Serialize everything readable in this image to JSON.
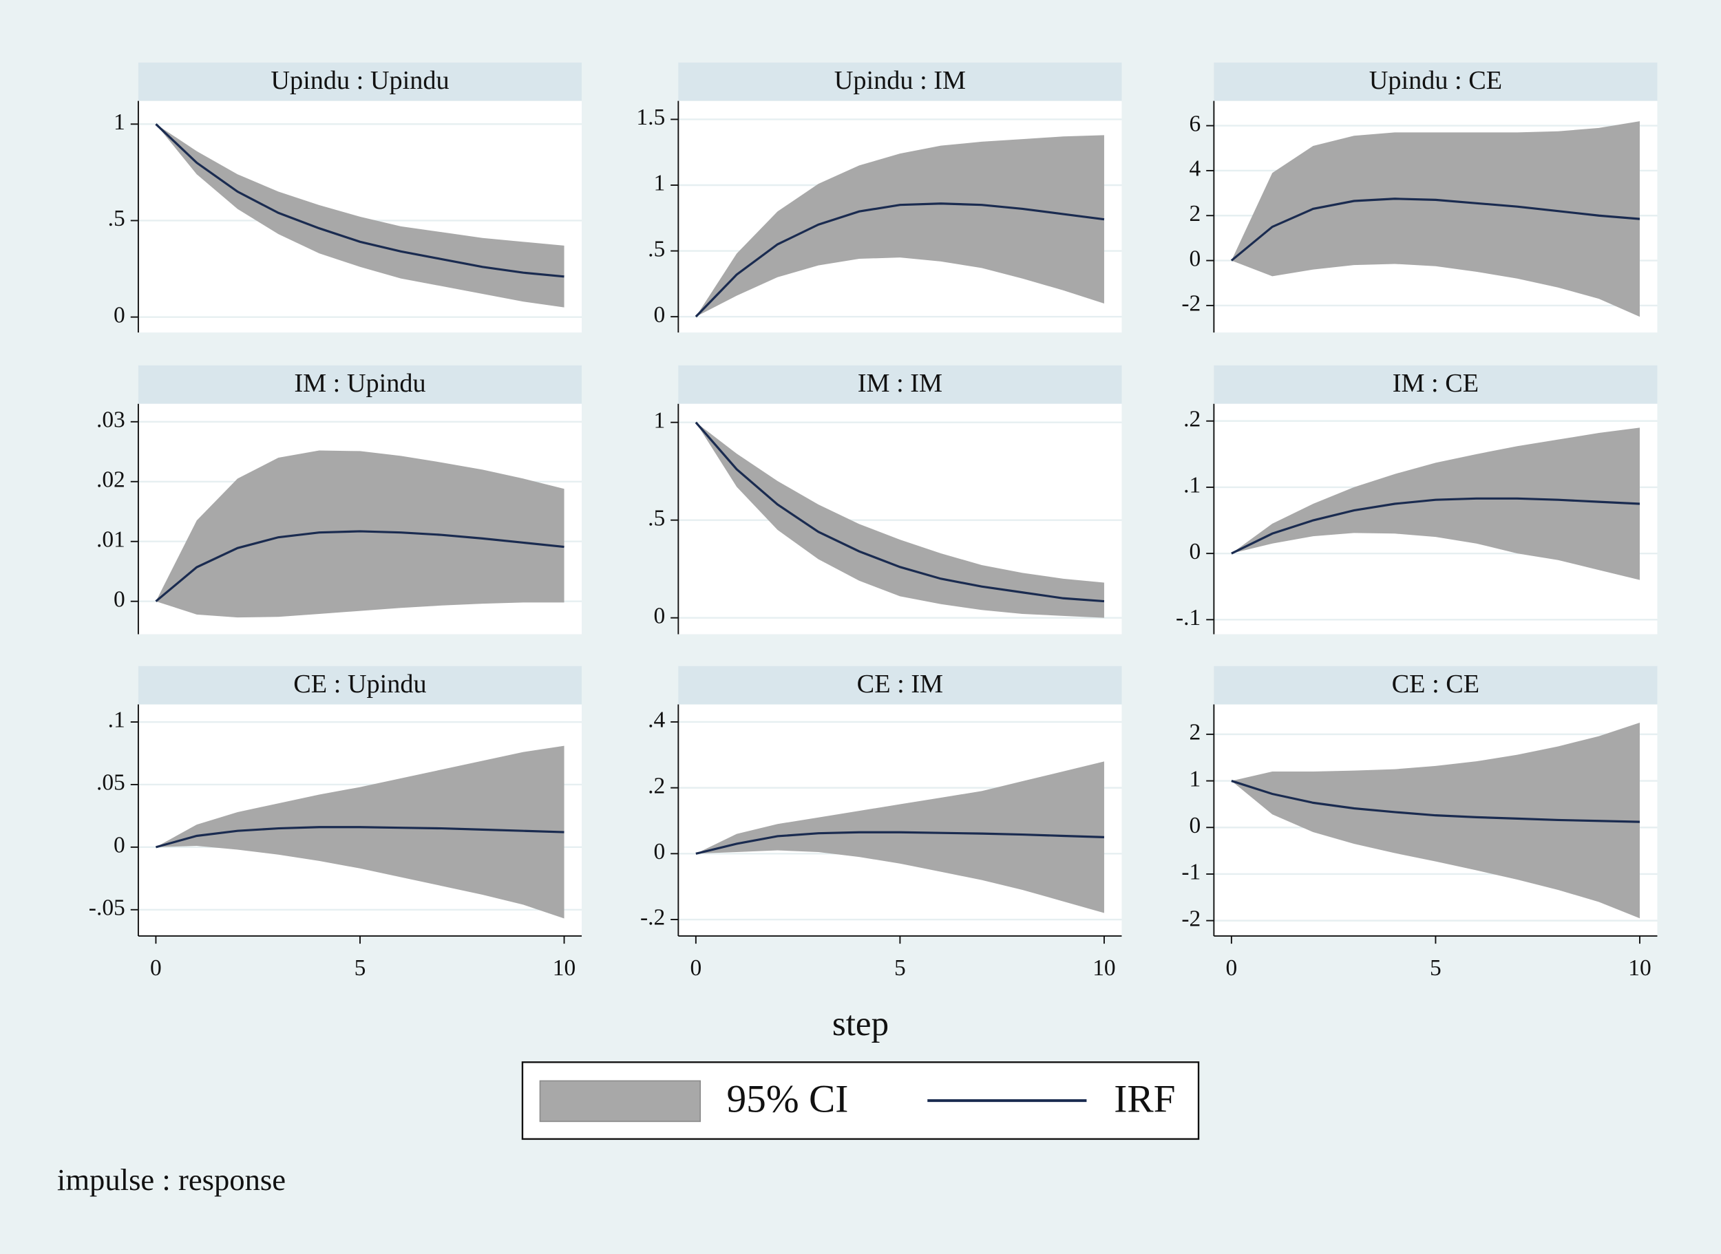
{
  "chart_data": [
    {
      "type": "band-line",
      "title": "Upindu : Upindu",
      "x": [
        0,
        1,
        2,
        3,
        4,
        5,
        6,
        7,
        8,
        9,
        10
      ],
      "values": [
        1,
        0.8,
        0.65,
        0.54,
        0.46,
        0.39,
        0.34,
        0.3,
        0.26,
        0.23,
        0.21
      ],
      "lower": [
        1,
        0.74,
        0.56,
        0.43,
        0.33,
        0.26,
        0.2,
        0.16,
        0.12,
        0.08,
        0.05
      ],
      "upper": [
        1,
        0.86,
        0.74,
        0.65,
        0.58,
        0.52,
        0.47,
        0.44,
        0.41,
        0.39,
        0.37
      ],
      "xlim": [
        -0.43,
        10.43
      ],
      "ylim": [
        -0.08,
        1.12
      ],
      "yticks": [
        0,
        {
          "value": 0.5,
          "label": ".5"
        },
        1
      ],
      "grid": true
    },
    {
      "type": "band-line",
      "title": "Upindu : IM",
      "x": [
        0,
        1,
        2,
        3,
        4,
        5,
        6,
        7,
        8,
        9,
        10
      ],
      "values": [
        0,
        0.32,
        0.55,
        0.7,
        0.8,
        0.85,
        0.86,
        0.85,
        0.82,
        0.78,
        0.74
      ],
      "lower": [
        0,
        0.16,
        0.3,
        0.39,
        0.44,
        0.45,
        0.42,
        0.37,
        0.29,
        0.2,
        0.1
      ],
      "upper": [
        0,
        0.48,
        0.8,
        1.01,
        1.15,
        1.24,
        1.3,
        1.33,
        1.35,
        1.37,
        1.38
      ],
      "xlim": [
        -0.43,
        10.43
      ],
      "ylim": [
        -0.12,
        1.64
      ],
      "yticks": [
        0,
        {
          "value": 0.5,
          "label": ".5"
        },
        1,
        1.5
      ],
      "grid": true
    },
    {
      "type": "band-line",
      "title": "Upindu : CE",
      "x": [
        0,
        1,
        2,
        3,
        4,
        5,
        6,
        7,
        8,
        9,
        10
      ],
      "values": [
        0,
        1.5,
        2.3,
        2.65,
        2.75,
        2.7,
        2.55,
        2.4,
        2.2,
        2,
        1.85
      ],
      "lower": [
        0,
        -0.7,
        -0.4,
        -0.2,
        -0.15,
        -0.25,
        -0.5,
        -0.8,
        -1.2,
        -1.7,
        -2.5
      ],
      "upper": [
        0,
        3.9,
        5.1,
        5.55,
        5.7,
        5.7,
        5.7,
        5.7,
        5.75,
        5.9,
        6.2
      ],
      "xlim": [
        -0.43,
        10.43
      ],
      "ylim": [
        -3.2,
        7.1
      ],
      "yticks": [
        -2,
        0,
        2,
        4,
        6
      ],
      "grid": true
    },
    {
      "type": "band-line",
      "title": "IM : Upindu",
      "x": [
        0,
        1,
        2,
        3,
        4,
        5,
        6,
        7,
        8,
        9,
        10
      ],
      "values": [
        0,
        0.0057,
        0.0089,
        0.0107,
        0.0115,
        0.0117,
        0.0115,
        0.0111,
        0.0105,
        0.0098,
        0.0091
      ],
      "lower": [
        0,
        -0.0022,
        -0.0027,
        -0.0026,
        -0.0021,
        -0.0016,
        -0.0011,
        -0.0007,
        -0.0004,
        -0.0002,
        -0.0002
      ],
      "upper": [
        0,
        0.0135,
        0.0205,
        0.024,
        0.0252,
        0.0251,
        0.0243,
        0.0232,
        0.022,
        0.0205,
        0.0188
      ],
      "xlim": [
        -0.43,
        10.43
      ],
      "ylim": [
        -0.0055,
        0.033
      ],
      "yticks": [
        0,
        {
          "value": 0.01,
          "label": ".01"
        },
        {
          "value": 0.02,
          "label": ".02"
        },
        {
          "value": 0.03,
          "label": ".03"
        }
      ],
      "grid": true
    },
    {
      "type": "band-line",
      "title": "IM : IM",
      "x": [
        0,
        1,
        2,
        3,
        4,
        5,
        6,
        7,
        8,
        9,
        10
      ],
      "values": [
        1,
        0.76,
        0.58,
        0.44,
        0.34,
        0.26,
        0.2,
        0.16,
        0.13,
        0.1,
        0.085
      ],
      "lower": [
        1,
        0.67,
        0.45,
        0.3,
        0.19,
        0.11,
        0.07,
        0.04,
        0.02,
        0.01,
        0
      ],
      "upper": [
        1,
        0.84,
        0.7,
        0.58,
        0.48,
        0.4,
        0.33,
        0.27,
        0.23,
        0.2,
        0.18
      ],
      "xlim": [
        -0.43,
        10.43
      ],
      "ylim": [
        -0.084,
        1.095
      ],
      "yticks": [
        0,
        {
          "value": 0.5,
          "label": ".5"
        },
        1
      ],
      "grid": true
    },
    {
      "type": "band-line",
      "title": "IM : CE",
      "x": [
        0,
        1,
        2,
        3,
        4,
        5,
        6,
        7,
        8,
        9,
        10
      ],
      "values": [
        0,
        0.03,
        0.05,
        0.065,
        0.075,
        0.081,
        0.083,
        0.083,
        0.081,
        0.078,
        0.075
      ],
      "lower": [
        0,
        0.015,
        0.026,
        0.031,
        0.03,
        0.025,
        0.015,
        0,
        -0.01,
        -0.025,
        -0.04
      ],
      "upper": [
        0,
        0.045,
        0.075,
        0.1,
        0.12,
        0.137,
        0.15,
        0.162,
        0.172,
        0.182,
        0.19
      ],
      "xlim": [
        -0.43,
        10.43
      ],
      "ylim": [
        -0.122,
        0.226
      ],
      "yticks": [
        {
          "value": -0.1,
          "label": "-.1"
        },
        0,
        {
          "value": 0.1,
          "label": ".1"
        },
        {
          "value": 0.2,
          "label": ".2"
        }
      ],
      "grid": true
    },
    {
      "type": "band-line",
      "title": "CE : Upindu",
      "x": [
        0,
        1,
        2,
        3,
        4,
        5,
        6,
        7,
        8,
        9,
        10
      ],
      "values": [
        0,
        0.009,
        0.013,
        0.015,
        0.016,
        0.016,
        0.0155,
        0.015,
        0.014,
        0.013,
        0.012
      ],
      "lower": [
        0,
        0.001,
        -0.002,
        -0.006,
        -0.011,
        -0.017,
        -0.024,
        -0.031,
        -0.038,
        -0.046,
        -0.057
      ],
      "upper": [
        0,
        0.018,
        0.028,
        0.035,
        0.042,
        0.048,
        0.055,
        0.062,
        0.069,
        0.076,
        0.081
      ],
      "xlim": [
        -0.43,
        10.43
      ],
      "ylim": [
        -0.071,
        0.114
      ],
      "yticks": [
        {
          "value": -0.05,
          "label": "-.05"
        },
        0,
        {
          "value": 0.05,
          "label": ".05"
        },
        {
          "value": 0.1,
          "label": ".1"
        }
      ],
      "xticks": [
        0,
        5,
        10
      ],
      "grid": true
    },
    {
      "type": "band-line",
      "title": "CE : IM",
      "x": [
        0,
        1,
        2,
        3,
        4,
        5,
        6,
        7,
        8,
        9,
        10
      ],
      "values": [
        0,
        0.03,
        0.053,
        0.062,
        0.065,
        0.065,
        0.063,
        0.061,
        0.058,
        0.054,
        0.05
      ],
      "lower": [
        0,
        0.005,
        0.01,
        0.005,
        -0.01,
        -0.03,
        -0.055,
        -0.08,
        -0.11,
        -0.145,
        -0.18
      ],
      "upper": [
        0,
        0.06,
        0.09,
        0.11,
        0.13,
        0.15,
        0.17,
        0.19,
        0.22,
        0.25,
        0.28
      ],
      "xlim": [
        -0.43,
        10.43
      ],
      "ylim": [
        -0.25,
        0.453
      ],
      "yticks": [
        {
          "value": -0.2,
          "label": "-.2"
        },
        0,
        {
          "value": 0.2,
          "label": ".2"
        },
        {
          "value": 0.4,
          "label": ".4"
        }
      ],
      "xticks": [
        0,
        5,
        10
      ],
      "grid": true
    },
    {
      "type": "band-line",
      "title": "CE : CE",
      "x": [
        0,
        1,
        2,
        3,
        4,
        5,
        6,
        7,
        8,
        9,
        10
      ],
      "values": [
        1,
        0.72,
        0.53,
        0.41,
        0.33,
        0.26,
        0.22,
        0.19,
        0.16,
        0.14,
        0.12
      ],
      "lower": [
        1,
        0.28,
        -0.1,
        -0.35,
        -0.55,
        -0.73,
        -0.92,
        -1.12,
        -1.34,
        -1.6,
        -1.95
      ],
      "upper": [
        1,
        1.2,
        1.2,
        1.22,
        1.25,
        1.32,
        1.42,
        1.56,
        1.74,
        1.96,
        2.25
      ],
      "xlim": [
        -0.43,
        10.43
      ],
      "ylim": [
        -2.33,
        2.64
      ],
      "yticks": [
        -2,
        -1,
        0,
        1,
        2
      ],
      "xticks": [
        0,
        5,
        10
      ],
      "grid": true
    }
  ],
  "xlabel": "step",
  "legend": {
    "items": [
      {
        "name": "95% CI",
        "color": "#a8a8a8"
      },
      {
        "name": "IRF",
        "color": "#1a2b50"
      }
    ]
  },
  "note": "impulse : response"
}
